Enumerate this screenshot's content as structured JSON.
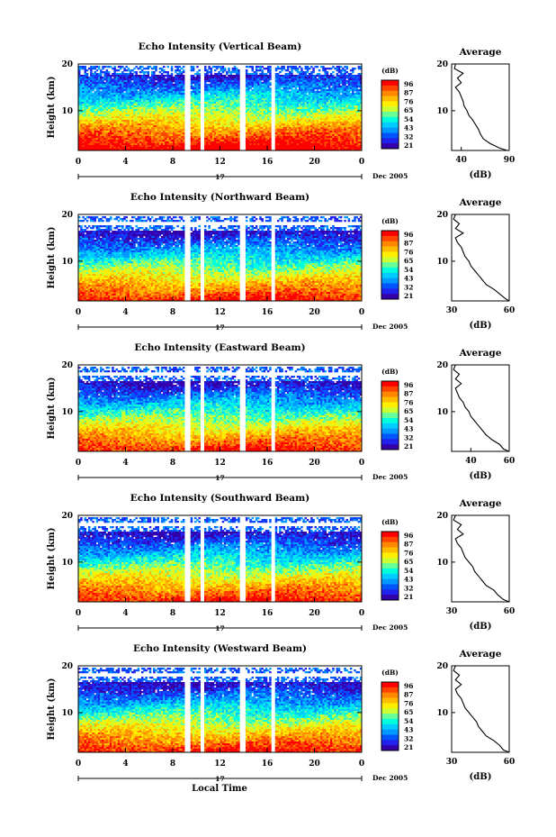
{
  "page": {
    "xlabel": "Local Time",
    "date_label": "Dec 2005",
    "day_label": "17"
  },
  "colorbar": {
    "unit": "(dB)",
    "ticks": [
      "96",
      "87",
      "76",
      "65",
      "54",
      "43",
      "32",
      "21"
    ],
    "colors": [
      "#ff0000",
      "#ff4400",
      "#ff8800",
      "#ffbb00",
      "#ffee00",
      "#ccff33",
      "#66ff99",
      "#00ffdd",
      "#00ccff",
      "#0099ff",
      "#0055ff",
      "#2222ee",
      "#3300aa"
    ]
  },
  "chart_data": [
    {
      "type": "heatmap",
      "title": "Echo Intensity (Vertical Beam)",
      "xlabel": "",
      "ylabel": "Height (km)",
      "xlim": [
        0,
        24
      ],
      "ylim": [
        1.5,
        20
      ],
      "x_ticks": [
        "0",
        "4",
        "8",
        "12",
        "16",
        "20",
        "0"
      ],
      "y_ticks": [
        "10",
        "20"
      ],
      "gaps_hours": [
        [
          9.0,
          9.5
        ],
        [
          10.3,
          10.6
        ],
        [
          13.7,
          14.2
        ],
        [
          16.4,
          16.7
        ]
      ],
      "profile": {
        "title": "Average",
        "xlabel": "(dB)",
        "xlim": [
          30,
          90
        ],
        "x_ticks": [
          "40",
          "90"
        ],
        "y_ticks": [
          "10",
          "20"
        ],
        "height_km": [
          1.5,
          2,
          3,
          4,
          5,
          6,
          7,
          8,
          9,
          10,
          11,
          12,
          13,
          14,
          15,
          16,
          17,
          18,
          19,
          20
        ],
        "mean_db": [
          88,
          80,
          70,
          63,
          60,
          58,
          55,
          52,
          48,
          46,
          43,
          42,
          40,
          38,
          34,
          40,
          36,
          42,
          33,
          34
        ]
      }
    },
    {
      "type": "heatmap",
      "title": "Echo Intensity (Northward Beam)",
      "xlabel": "",
      "ylabel": "Height (km)",
      "xlim": [
        0,
        24
      ],
      "ylim": [
        1.5,
        20
      ],
      "x_ticks": [
        "0",
        "4",
        "8",
        "12",
        "16",
        "20",
        "0"
      ],
      "y_ticks": [
        "10",
        "20"
      ],
      "gaps_hours": [
        [
          9.0,
          9.5
        ],
        [
          10.3,
          10.6
        ],
        [
          13.7,
          14.2
        ],
        [
          16.4,
          16.7
        ]
      ],
      "profile": {
        "title": "Average",
        "xlabel": "(dB)",
        "xlim": [
          30,
          60
        ],
        "x_ticks": [
          "30",
          "60"
        ],
        "y_ticks": [
          "10",
          "20"
        ],
        "height_km": [
          1.5,
          2,
          3,
          4,
          5,
          6,
          7,
          8,
          9,
          10,
          11,
          12,
          13,
          14,
          15,
          16,
          17,
          18,
          19,
          20
        ],
        "mean_db": [
          60,
          58,
          55,
          52,
          48,
          46,
          44,
          42,
          40,
          39,
          37,
          36,
          35,
          33,
          32,
          36,
          32,
          34,
          31,
          32
        ]
      }
    },
    {
      "type": "heatmap",
      "title": "Echo Intensity (Eastward Beam)",
      "xlabel": "",
      "ylabel": "Height (km)",
      "xlim": [
        0,
        24
      ],
      "ylim": [
        1.5,
        20
      ],
      "x_ticks": [
        "0",
        "4",
        "8",
        "12",
        "16",
        "20",
        "0"
      ],
      "y_ticks": [
        "10",
        "20"
      ],
      "gaps_hours": [
        [
          9.0,
          9.5
        ],
        [
          10.3,
          10.6
        ],
        [
          13.7,
          14.2
        ],
        [
          16.4,
          16.7
        ]
      ],
      "profile": {
        "title": "Average",
        "xlabel": "(dB)",
        "xlim": [
          30,
          60
        ],
        "x_ticks": [
          "40",
          "60"
        ],
        "y_ticks": [
          "10",
          "20"
        ],
        "height_km": [
          1.5,
          2,
          3,
          4,
          5,
          6,
          7,
          8,
          9,
          10,
          11,
          12,
          13,
          14,
          15,
          16,
          17,
          18,
          19,
          20
        ],
        "mean_db": [
          60,
          57,
          55,
          51,
          48,
          46,
          44,
          42,
          40,
          39,
          37,
          36,
          34,
          33,
          32,
          35,
          32,
          34,
          31,
          32
        ]
      }
    },
    {
      "type": "heatmap",
      "title": "Echo Intensity (Southward Beam)",
      "xlabel": "",
      "ylabel": "Height (km)",
      "xlim": [
        0,
        24
      ],
      "ylim": [
        1.5,
        20
      ],
      "x_ticks": [
        "0",
        "4",
        "8",
        "12",
        "16",
        "20",
        "0"
      ],
      "y_ticks": [
        "10",
        "20"
      ],
      "gaps_hours": [
        [
          9.0,
          9.5
        ],
        [
          10.3,
          10.6
        ],
        [
          13.7,
          14.2
        ],
        [
          16.4,
          16.7
        ]
      ],
      "profile": {
        "title": "Average",
        "xlabel": "(dB)",
        "xlim": [
          30,
          60
        ],
        "x_ticks": [
          "30",
          "60"
        ],
        "y_ticks": [
          "10",
          "20"
        ],
        "height_km": [
          1.5,
          2,
          3,
          4,
          5,
          6,
          7,
          8,
          9,
          10,
          11,
          12,
          13,
          14,
          15,
          16,
          17,
          18,
          19,
          20
        ],
        "mean_db": [
          60,
          57,
          54,
          52,
          48,
          46,
          44,
          42,
          41,
          39,
          37,
          36,
          35,
          33,
          32,
          36,
          33,
          35,
          31,
          32
        ]
      }
    },
    {
      "type": "heatmap",
      "title": "Echo Intensity (Westward Beam)",
      "xlabel": "Local Time",
      "ylabel": "Height (km)",
      "xlim": [
        0,
        24
      ],
      "ylim": [
        1.5,
        20
      ],
      "x_ticks": [
        "0",
        "4",
        "8",
        "12",
        "16",
        "20",
        "0"
      ],
      "y_ticks": [
        "10",
        "20"
      ],
      "gaps_hours": [
        [
          9.0,
          9.5
        ],
        [
          10.3,
          10.6
        ],
        [
          13.7,
          14.2
        ],
        [
          16.4,
          16.7
        ]
      ],
      "profile": {
        "title": "Average",
        "xlabel": "(dB)",
        "xlim": [
          30,
          60
        ],
        "x_ticks": [
          "30",
          "60"
        ],
        "y_ticks": [
          "10",
          "20"
        ],
        "height_km": [
          1.5,
          2,
          3,
          4,
          5,
          6,
          7,
          8,
          9,
          10,
          11,
          12,
          13,
          14,
          15,
          16,
          17,
          18,
          19,
          20
        ],
        "mean_db": [
          60,
          57,
          55,
          52,
          48,
          46,
          44,
          43,
          41,
          39,
          37,
          36,
          35,
          33,
          32,
          35,
          32,
          34,
          31,
          32
        ]
      }
    }
  ]
}
